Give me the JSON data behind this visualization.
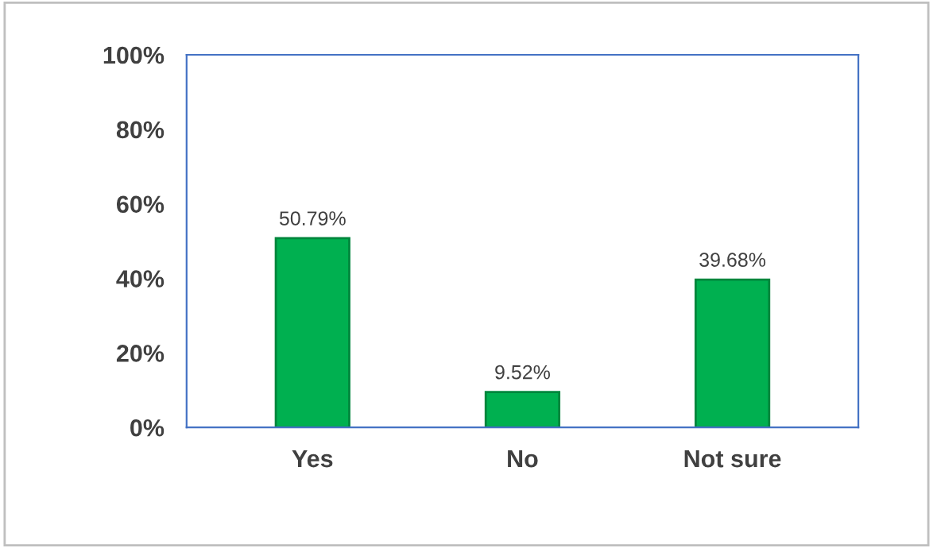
{
  "chart_data": {
    "type": "bar",
    "categories": [
      "Yes",
      "No",
      "Not sure"
    ],
    "values": [
      50.79,
      9.52,
      39.68
    ],
    "value_labels": [
      "50.79%",
      "9.52%",
      "39.68%"
    ],
    "color": "#00b050",
    "ylim": [
      0,
      100
    ],
    "yticks": [
      {
        "value": 0,
        "label": "0%"
      },
      {
        "value": 20,
        "label": "20%"
      },
      {
        "value": 40,
        "label": "40%"
      },
      {
        "value": 60,
        "label": "60%"
      },
      {
        "value": 80,
        "label": "80%"
      },
      {
        "value": 100,
        "label": "100%"
      }
    ],
    "grid": false
  }
}
